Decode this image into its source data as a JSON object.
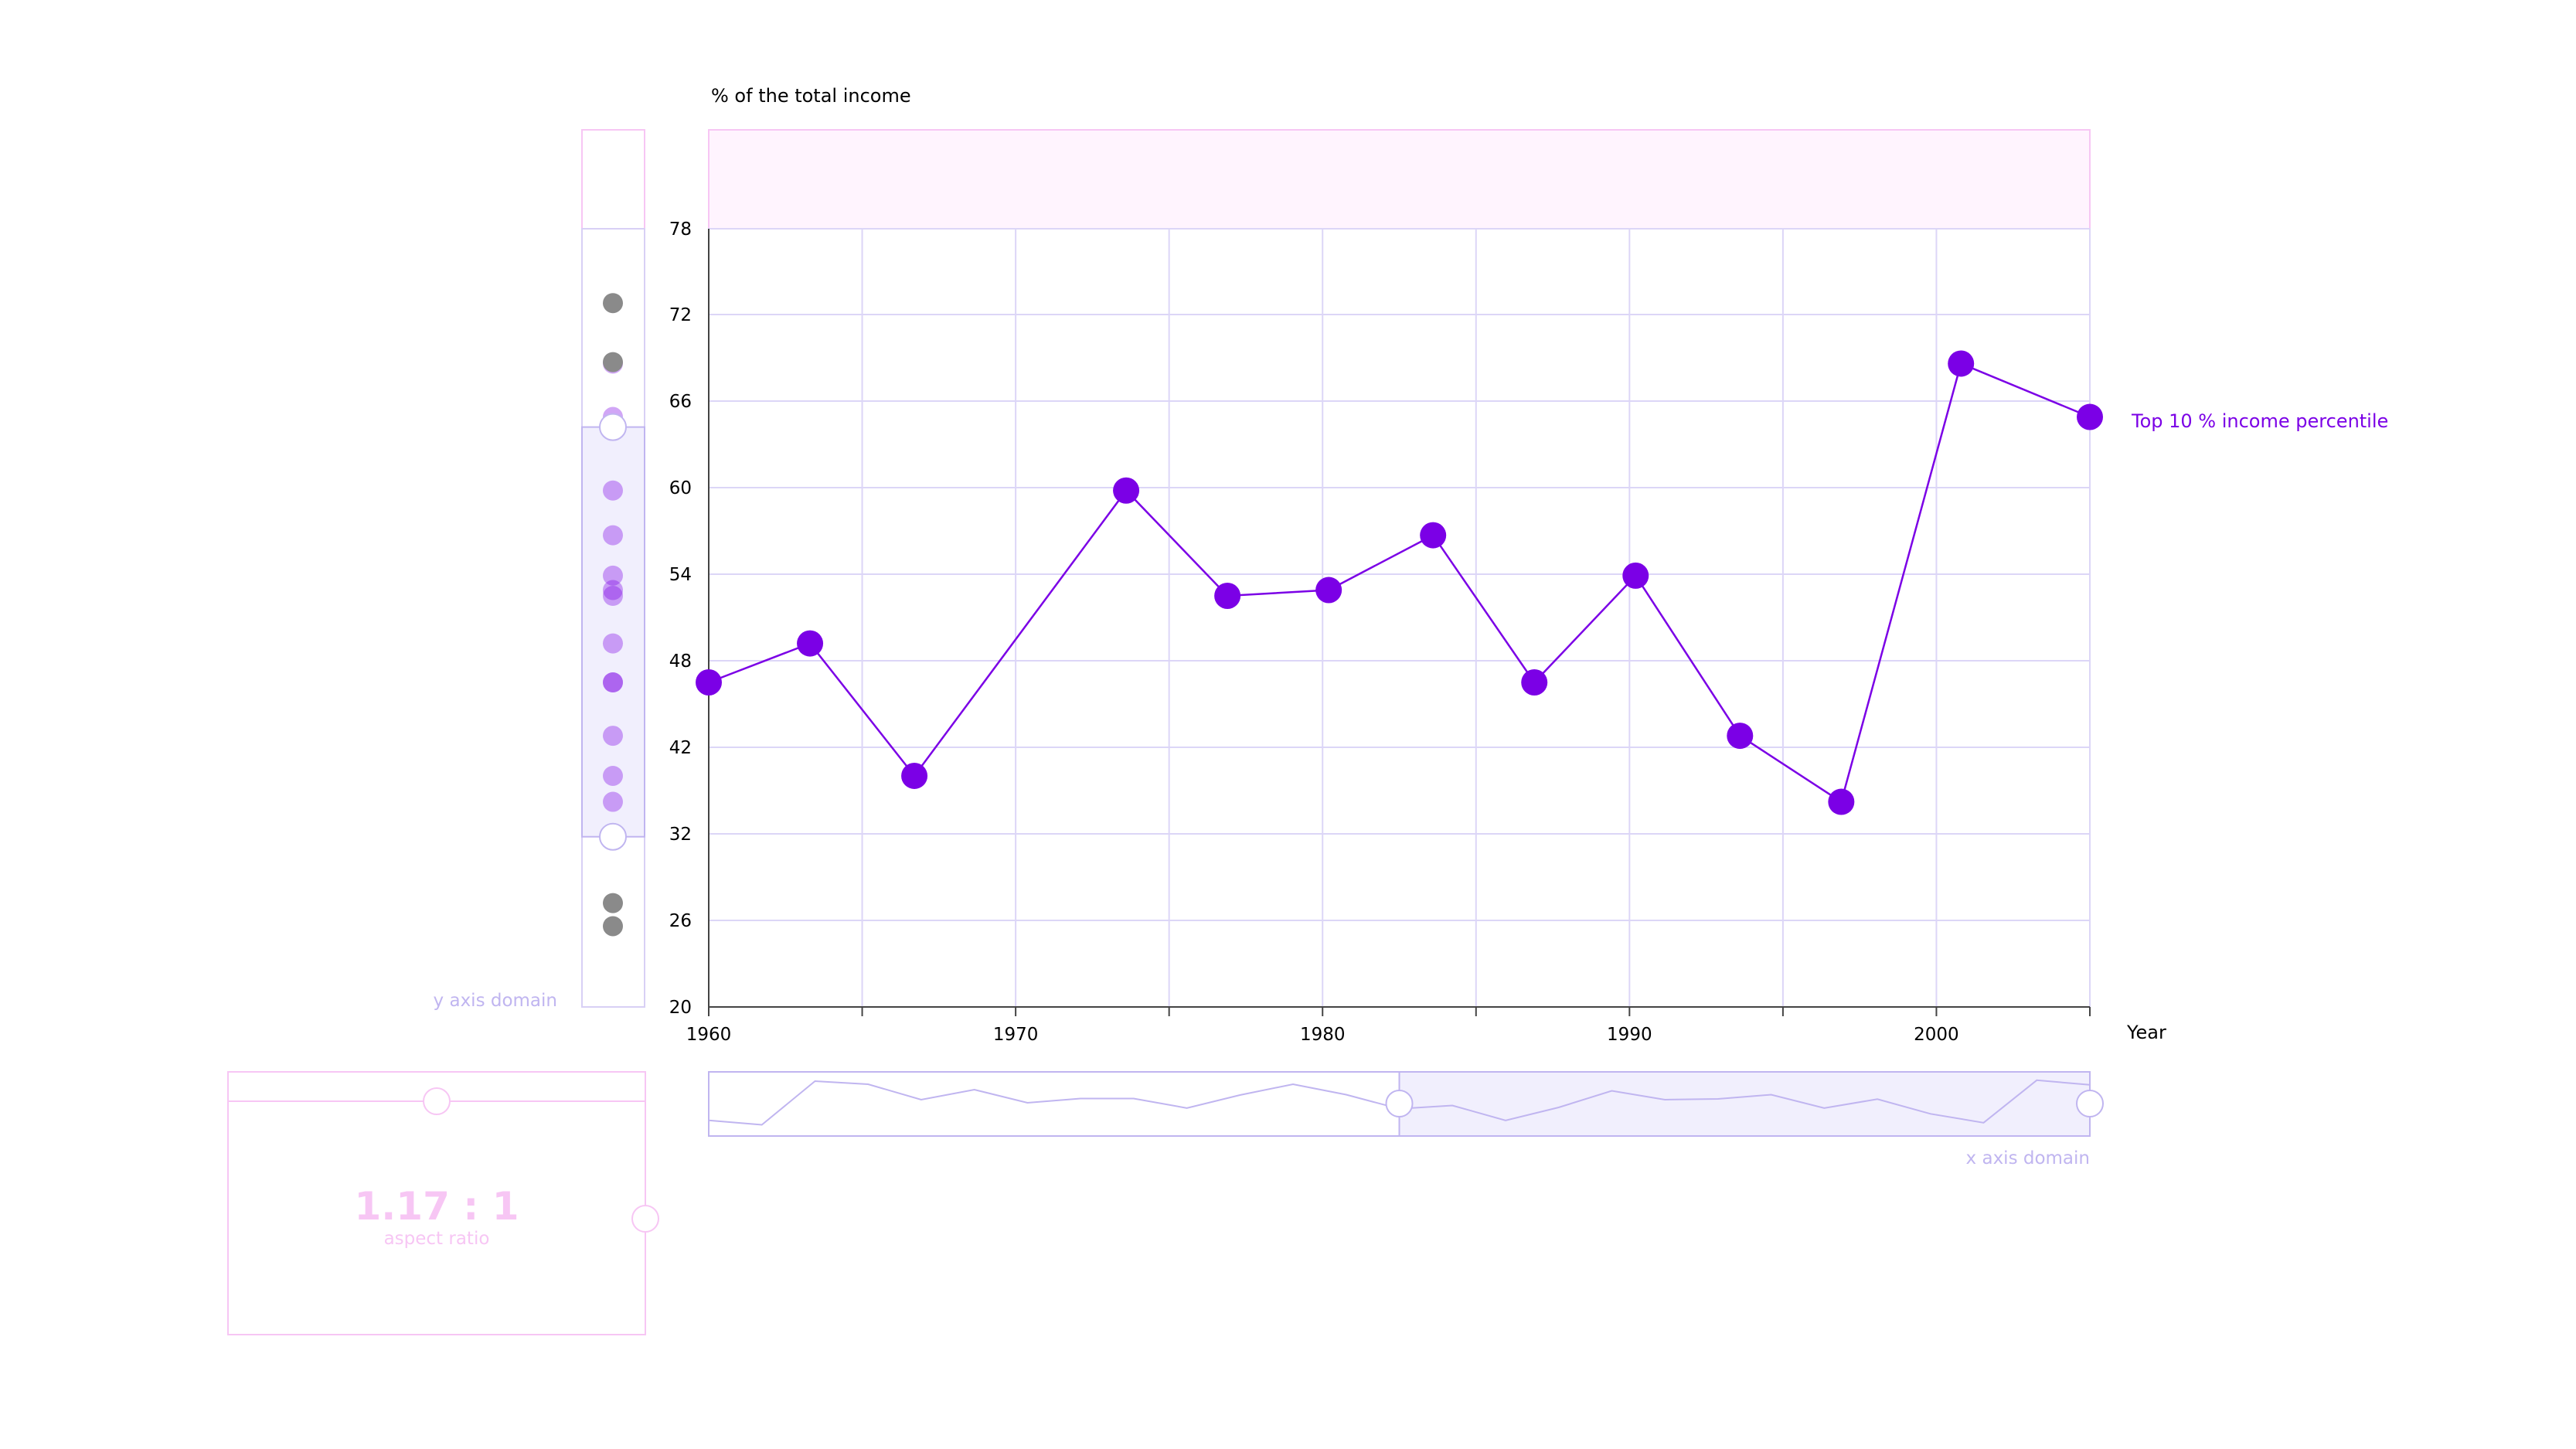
{
  "chart_data": {
    "type": "line",
    "ylabel": "% of the total income",
    "xlabel": "Year",
    "xlim": [
      1960,
      2005
    ],
    "ylim": [
      20,
      78
    ],
    "x_ticks": [
      1960,
      1965,
      1970,
      1975,
      1980,
      1985,
      1990,
      1995,
      2000,
      2005
    ],
    "x_tick_labels": [
      "1960",
      "1970",
      "1980",
      "1990",
      "2000"
    ],
    "y_ticks": [
      20,
      26,
      32,
      42,
      48,
      54,
      60,
      66,
      72,
      78
    ],
    "grid": true,
    "series": [
      {
        "name": "Top 10 % income percentile",
        "color": "#7b00e6",
        "x": [
          1960,
          1963.3,
          1966.7,
          1973.6,
          1976.9,
          1980.2,
          1983.6,
          1986.9,
          1990.2,
          1993.6,
          1996.9,
          2000.8,
          2005
        ],
        "y": [
          46.5,
          49.2,
          38.7,
          59.8,
          52.5,
          52.9,
          56.7,
          46.5,
          53.9,
          42.8,
          35.7,
          68.6,
          64.9
        ]
      }
    ],
    "y_domain_panel": {
      "label": "y axis domain",
      "selected_range": [
        31.8,
        64.2
      ],
      "out_of_range_values": [
        72.8,
        68.7,
        27.2,
        25.6
      ]
    },
    "x_domain_panel": {
      "label": "x axis domain",
      "selected_range": [
        1982.5,
        2005
      ],
      "overview_y": [
        46.5,
        44.2,
        66.8,
        65.2,
        57.2,
        62.4,
        55.6,
        57.8,
        57.8,
        52.9,
        59.6,
        65.2,
        59.8,
        52.5,
        54.2,
        46.5,
        53.2,
        61.8,
        57.2,
        57.6,
        59.8,
        52.9,
        57.5,
        49.9,
        45.3,
        67.3,
        64.9
      ]
    },
    "aspect_ratio": {
      "value": "1.17 : 1",
      "label": "aspect ratio"
    }
  },
  "colors": {
    "series": "#7b00e6",
    "lavender": "#c0b5f0",
    "lavender_fill": "#f1effd",
    "pink": "#f7c6f4",
    "pink_fill": "#fff4fe",
    "gray_point": "#8a8a8a"
  }
}
